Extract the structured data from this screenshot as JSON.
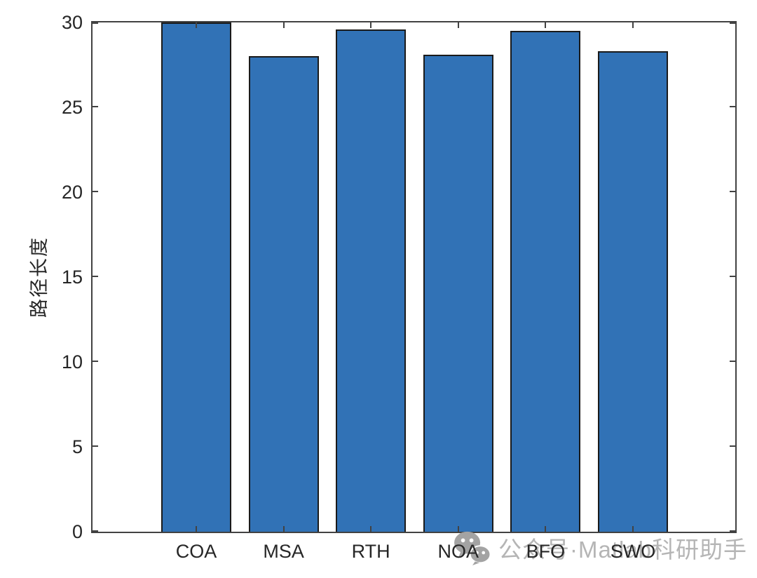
{
  "chart_data": {
    "type": "bar",
    "categories": [
      "COA",
      "MSA",
      "RTH",
      "NOA",
      "BFO",
      "SWO"
    ],
    "values": [
      30.0,
      28.0,
      29.6,
      28.1,
      29.5,
      28.3
    ],
    "title": "",
    "xlabel": "",
    "ylabel": "路径长度",
    "ylim": [
      0,
      30
    ],
    "yticks": [
      0,
      5,
      10,
      15,
      20,
      25,
      30
    ],
    "grid": false,
    "legend_position": "none",
    "bar_face_color": "#3172B6",
    "bar_edge_color": "#1a1a1a",
    "axis_color": "#424242",
    "tick_label_color": "#262626"
  },
  "watermark": {
    "icon": "wechat-icon",
    "text": "公众号·Matlab科研助手",
    "text_color": "#b5b5b5",
    "icon_color": "#a3a3a3"
  }
}
